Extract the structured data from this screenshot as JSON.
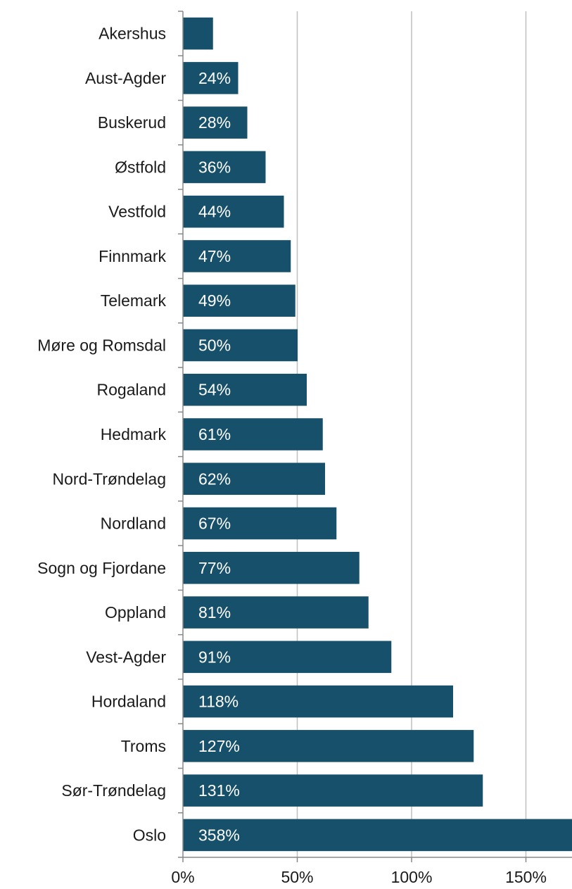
{
  "chart_data": {
    "type": "bar",
    "orientation": "horizontal",
    "categories": [
      "Akershus",
      "Aust-Agder",
      "Buskerud",
      "Østfold",
      "Vestfold",
      "Finnmark",
      "Telemark",
      "Møre og Romsdal",
      "Rogaland",
      "Hedmark",
      "Nord-Trøndelag",
      "Nordland",
      "Sogn og Fjordane",
      "Oppland",
      "Vest-Agder",
      "Hordaland",
      "Troms",
      "Sør-Trøndelag",
      "Oslo"
    ],
    "values": [
      13,
      24,
      28,
      36,
      44,
      47,
      49,
      50,
      54,
      61,
      62,
      67,
      77,
      81,
      91,
      118,
      127,
      131,
      358
    ],
    "data_labels": [
      "",
      "24%",
      "28%",
      "36%",
      "44%",
      "47%",
      "49%",
      "50%",
      "54%",
      "61%",
      "62%",
      "67%",
      "77%",
      "81%",
      "91%",
      "118%",
      "127%",
      "131%",
      "358%"
    ],
    "x_ticks": [
      "0%",
      "50%",
      "100%",
      "150%"
    ],
    "x_tick_values": [
      0,
      50,
      100,
      150
    ],
    "xlim": [
      0,
      170
    ],
    "title": "",
    "xlabel": "",
    "ylabel": "",
    "grid": "vertical",
    "legend": "none",
    "colors": {
      "bar": "#17506a",
      "gridline": "#bfbfbf",
      "axis": "#888888",
      "label_text": "#1a1a1a",
      "data_label_text": "#ffffff"
    }
  }
}
